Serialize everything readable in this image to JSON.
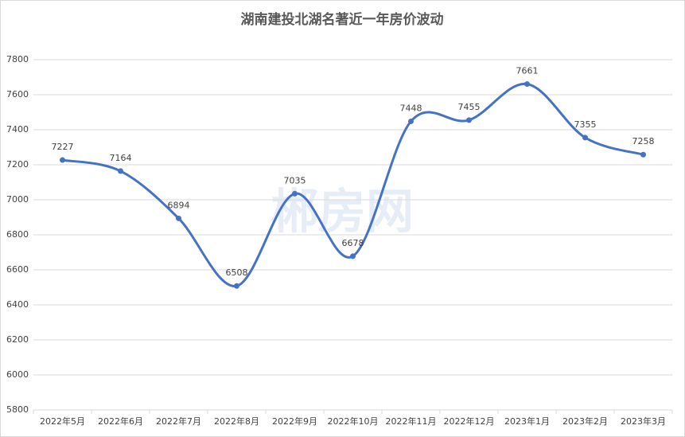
{
  "chart_data": {
    "type": "line",
    "title": "湖南建投北湖名著近一年房价波动",
    "watermark": "郴房网",
    "categories": [
      "2022年5月",
      "2022年6月",
      "2022年7月",
      "2022年8月",
      "2022年9月",
      "2022年10月",
      "2022年11月",
      "2022年12月",
      "2023年1月",
      "2023年2月",
      "2023年3月"
    ],
    "values": [
      7227,
      7164,
      6894,
      6508,
      7035,
      6678,
      7448,
      7455,
      7661,
      7355,
      7258
    ],
    "color": "#4472c4",
    "ylim": [
      5800,
      7800
    ],
    "yticks": [
      5800,
      6000,
      6200,
      6400,
      6600,
      6800,
      7000,
      7200,
      7400,
      7600,
      7800
    ],
    "grid": true,
    "smooth": true
  }
}
